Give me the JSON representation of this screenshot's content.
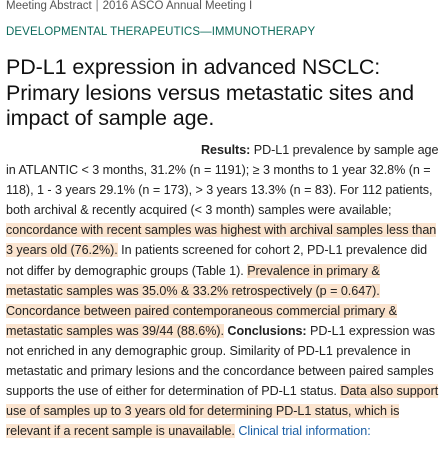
{
  "header": {
    "type": "Meeting Abstract",
    "separator": "|",
    "meeting": "2016 ASCO Annual Meeting I"
  },
  "category": "DEVELOPMENTAL THERAPEUTICS—IMMUNOTHERAPY",
  "title": "PD-L1 expression in advanced NSCLC: Primary lesions versus metastatic sites and impact of sample age.",
  "abstract": {
    "results_label": "Results:",
    "seg1": " PD-L1 prevalence by sample age in ATLANTIC < 3 months, 31.2% (n = 1191); ≥ 3 months to 1 year 32.8% (n = 118), 1 - 3 years 29.1% (n = 173), > 3 years 13.3% (n = 83). For 112 patients, both archival & recently acquired (< 3 month) samples were available; ",
    "hl1": "concordance with recent samples was highest with archival samples less than 3 years old (76.2%).",
    "seg2": " In patients screened for cohort 2, PD-L1 prevalence did not differ by demographic groups (Table 1). ",
    "hl2": "Prevalence in primary & metastatic samples was 35.0% & 33.2% retrospectively (p = 0.647). Concordance between paired contemporaneous commercial primary & metastatic samples was 39/44 (88.6%).",
    "seg3": " ",
    "conclusions_label": "Conclusions:",
    "seg4": " PD-L1 expression was not enriched in any demographic group. Similarity of PD-L1 prevalence in metastatic and primary lesions and the concordance between paired samples supports the use of either for determination of PD-L1 status. ",
    "hl3": "Data also support use of samples up to 3 years old for determining PD-L1 status, which is relevant if a recent sample is unavailable.",
    "seg5": " ",
    "link_text": "Clinical trial information:"
  },
  "colors": {
    "highlight": "#fbe4cf",
    "category": "#0e6b5c",
    "link": "#1a5fa6"
  }
}
